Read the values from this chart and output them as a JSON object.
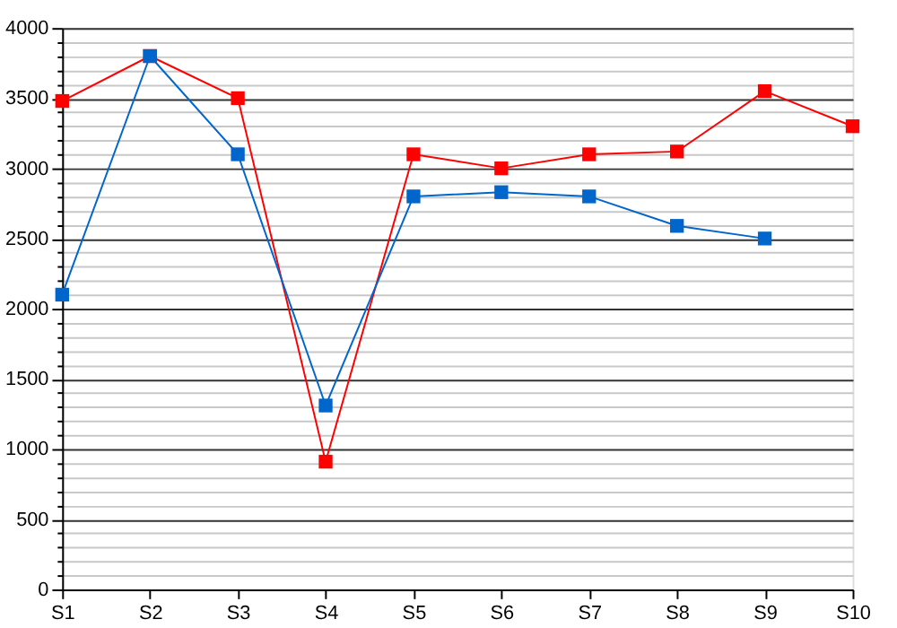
{
  "chart_data": {
    "type": "line",
    "categories": [
      "S1",
      "S2",
      "S3",
      "S4",
      "S5",
      "S6",
      "S7",
      "S8",
      "S9",
      "S10"
    ],
    "series": [
      {
        "color": "#ff0000",
        "values": [
          3480,
          3800,
          3500,
          910,
          3100,
          3000,
          3100,
          3120,
          3550,
          3300
        ]
      },
      {
        "color": "#0066cc",
        "values": [
          2100,
          3800,
          3100,
          1310,
          2800,
          2830,
          2800,
          2590,
          2500,
          null
        ]
      }
    ],
    "ylim": [
      0,
      4000
    ],
    "yticks": [
      0,
      {
        "value": 100,
        "label": null
      },
      {
        "value": 200,
        "label": null
      },
      {
        "value": 300,
        "label": null
      },
      {
        "value": 400,
        "label": null
      },
      500,
      {
        "value": 600,
        "label": null
      },
      {
        "value": 700,
        "label": null
      },
      {
        "value": 800,
        "label": null
      },
      {
        "value": 900,
        "label": null
      },
      1000,
      {
        "value": 1100,
        "label": null
      },
      {
        "value": 1200,
        "label": null
      },
      {
        "value": 1300,
        "label": null
      },
      {
        "value": 1400,
        "label": null
      },
      1500,
      {
        "value": 1600,
        "label": null
      },
      {
        "value": 1700,
        "label": null
      },
      {
        "value": 1800,
        "label": null
      },
      {
        "value": 1900,
        "label": null
      },
      2000,
      {
        "value": 2100,
        "label": null
      },
      {
        "value": 2200,
        "label": null
      },
      {
        "value": 2300,
        "label": null
      },
      {
        "value": 2400,
        "label": null
      },
      2500,
      {
        "value": 2600,
        "label": null
      },
      {
        "value": 2700,
        "label": null
      },
      {
        "value": 2800,
        "label": null
      },
      {
        "value": 2900,
        "label": null
      },
      3000,
      {
        "value": 3100,
        "label": null
      },
      {
        "value": 3200,
        "label": null
      },
      {
        "value": 3300,
        "label": null
      },
      {
        "value": 3400,
        "label": null
      },
      3500,
      {
        "value": 3600,
        "label": null
      },
      {
        "value": 3700,
        "label": null
      },
      {
        "value": 3800,
        "label": null
      },
      {
        "value": 3900,
        "label": null
      },
      4000
    ],
    "grid": "y",
    "marker": "square",
    "line_style": "solid"
  }
}
